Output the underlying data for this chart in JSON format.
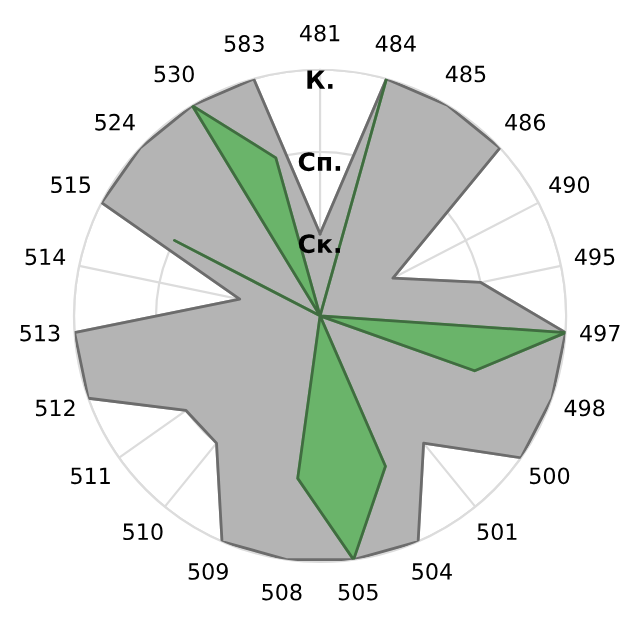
{
  "chart_data": {
    "type": "radar",
    "categories": [
      "481",
      "484",
      "485",
      "486",
      "490",
      "495",
      "497",
      "498",
      "500",
      "501",
      "504",
      "505",
      "508",
      "509",
      "510",
      "511",
      "512",
      "513",
      "514",
      "515",
      "524",
      "530",
      "583"
    ],
    "series": [
      {
        "color": "#b4b4b4",
        "values": [
          1,
          3,
          3,
          3,
          1,
          2,
          3,
          3,
          3,
          2,
          3,
          3,
          3,
          3,
          2,
          2,
          3,
          3,
          1,
          3,
          3,
          3,
          3
        ]
      },
      {
        "color": "#6ab46a",
        "values": [
          0,
          3,
          0,
          0,
          0,
          0,
          3,
          2,
          0,
          0,
          2,
          3,
          2,
          0,
          0,
          0,
          0,
          0,
          0,
          2,
          0,
          3,
          2
        ]
      }
    ],
    "ylim": [
      0,
      3
    ],
    "yticks": [
      {
        "value": 1,
        "label": "Ск."
      },
      {
        "value": 2,
        "label": "Сп."
      },
      {
        "value": 3,
        "label": "К."
      }
    ],
    "grid": true,
    "marker": "none"
  }
}
